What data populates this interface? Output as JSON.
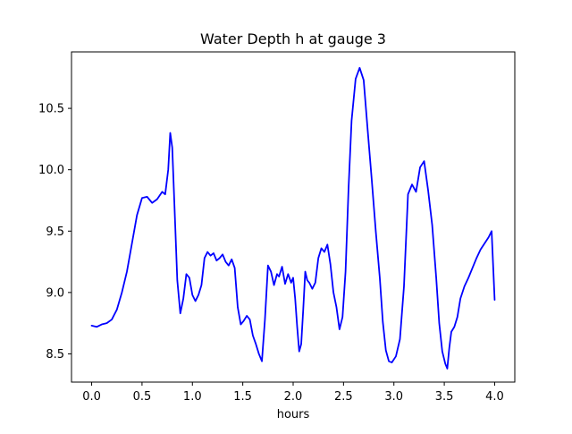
{
  "chart_data": {
    "type": "line",
    "title": "Water Depth h at gauge 3",
    "xlabel": "hours",
    "ylabel": "",
    "xlim": [
      -0.2,
      4.2
    ],
    "ylim": [
      8.27,
      10.96
    ],
    "xticks": [
      0.0,
      0.5,
      1.0,
      1.5,
      2.0,
      2.5,
      3.0,
      3.5,
      4.0
    ],
    "xtick_labels": [
      "0.0",
      "0.5",
      "1.0",
      "1.5",
      "2.0",
      "2.5",
      "3.0",
      "3.5",
      "4.0"
    ],
    "yticks": [
      8.5,
      9.0,
      9.5,
      10.0,
      10.5
    ],
    "ytick_labels": [
      "8.5",
      "9.0",
      "9.5",
      "10.0",
      "10.5"
    ],
    "grid": false,
    "series": [
      {
        "color": "#0000ff",
        "x": [
          0.0,
          0.05,
          0.1,
          0.15,
          0.2,
          0.25,
          0.3,
          0.35,
          0.4,
          0.45,
          0.5,
          0.55,
          0.6,
          0.65,
          0.7,
          0.73,
          0.76,
          0.78,
          0.8,
          0.82,
          0.85,
          0.88,
          0.91,
          0.94,
          0.97,
          1.0,
          1.03,
          1.06,
          1.09,
          1.12,
          1.15,
          1.18,
          1.21,
          1.24,
          1.27,
          1.3,
          1.33,
          1.36,
          1.39,
          1.42,
          1.45,
          1.48,
          1.51,
          1.54,
          1.57,
          1.6,
          1.63,
          1.66,
          1.69,
          1.72,
          1.75,
          1.78,
          1.81,
          1.84,
          1.86,
          1.89,
          1.92,
          1.95,
          1.98,
          2.0,
          2.02,
          2.04,
          2.06,
          2.08,
          2.1,
          2.12,
          2.14,
          2.16,
          2.19,
          2.22,
          2.25,
          2.28,
          2.31,
          2.34,
          2.37,
          2.4,
          2.43,
          2.46,
          2.49,
          2.52,
          2.55,
          2.58,
          2.62,
          2.66,
          2.7,
          2.74,
          2.78,
          2.82,
          2.86,
          2.89,
          2.92,
          2.95,
          2.98,
          3.02,
          3.06,
          3.1,
          3.14,
          3.18,
          3.22,
          3.26,
          3.3,
          3.34,
          3.38,
          3.42,
          3.45,
          3.48,
          3.51,
          3.53,
          3.55,
          3.57,
          3.6,
          3.63,
          3.66,
          3.7,
          3.74,
          3.78,
          3.82,
          3.86,
          3.9,
          3.94,
          3.97,
          4.0
        ],
        "y": [
          8.73,
          8.72,
          8.74,
          8.75,
          8.78,
          8.86,
          9.0,
          9.17,
          9.4,
          9.63,
          9.77,
          9.78,
          9.73,
          9.76,
          9.82,
          9.8,
          10.0,
          10.3,
          10.18,
          9.75,
          9.1,
          8.83,
          8.95,
          9.15,
          9.12,
          8.98,
          8.93,
          8.98,
          9.06,
          9.28,
          9.33,
          9.3,
          9.32,
          9.26,
          9.28,
          9.31,
          9.25,
          9.22,
          9.27,
          9.2,
          8.88,
          8.74,
          8.77,
          8.81,
          8.78,
          8.65,
          8.58,
          8.5,
          8.44,
          8.78,
          9.22,
          9.17,
          9.06,
          9.15,
          9.13,
          9.21,
          9.07,
          9.15,
          9.08,
          9.12,
          8.95,
          8.72,
          8.52,
          8.58,
          8.86,
          9.17,
          9.1,
          9.08,
          9.03,
          9.08,
          9.28,
          9.36,
          9.33,
          9.39,
          9.23,
          9.0,
          8.88,
          8.7,
          8.8,
          9.17,
          9.85,
          10.4,
          10.74,
          10.83,
          10.73,
          10.32,
          9.92,
          9.5,
          9.12,
          8.76,
          8.53,
          8.44,
          8.43,
          8.48,
          8.62,
          9.05,
          9.8,
          9.88,
          9.82,
          10.02,
          10.07,
          9.83,
          9.55,
          9.12,
          8.75,
          8.52,
          8.42,
          8.38,
          8.55,
          8.68,
          8.72,
          8.8,
          8.95,
          9.05,
          9.12,
          9.2,
          9.28,
          9.35,
          9.4,
          9.45,
          9.5,
          8.94
        ]
      }
    ]
  }
}
